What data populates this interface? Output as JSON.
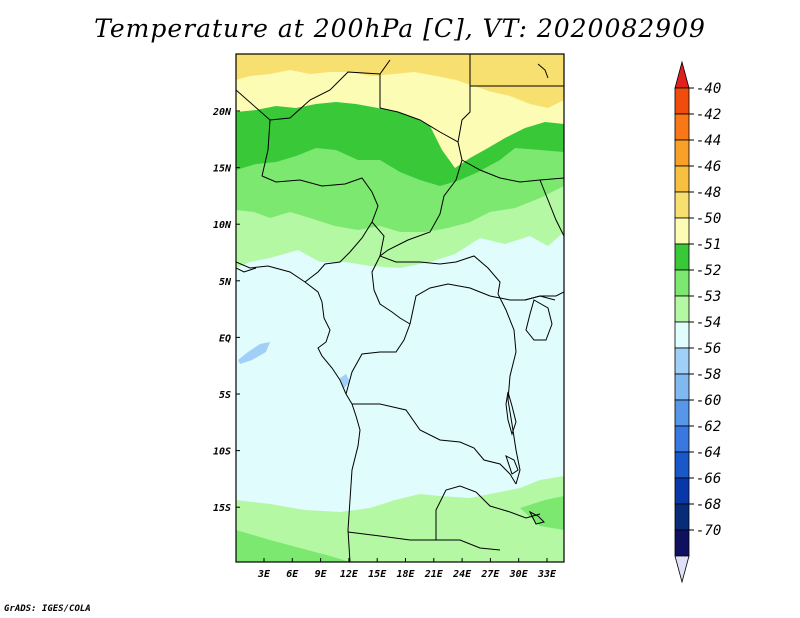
{
  "title": "Temperature at 200hPa [C], VT: 2020082909",
  "credit": "GrADS: IGES/COLA",
  "map": {
    "lat_labels": [
      "20N",
      "15N",
      "10N",
      "5N",
      "EQ",
      "5S",
      "10S",
      "15S"
    ],
    "lon_labels": [
      "3E",
      "6E",
      "9E",
      "12E",
      "15E",
      "18E",
      "21E",
      "24E",
      "27E",
      "30E",
      "33E"
    ]
  },
  "colorbar": {
    "labels": [
      "-40",
      "-42",
      "-44",
      "-46",
      "-48",
      "-50",
      "-51",
      "-52",
      "-53",
      "-54",
      "-56",
      "-58",
      "-60",
      "-62",
      "-64",
      "-66",
      "-68",
      "-70"
    ],
    "colors": [
      "#e0201c",
      "#f04c0c",
      "#f87818",
      "#f8a028",
      "#f8c040",
      "#f8e070",
      "#fcfcb4",
      "#38c838",
      "#7ce870",
      "#b4f8a4",
      "#e0fcfc",
      "#a0d0f8",
      "#80b8f0",
      "#5896e8",
      "#3878e0",
      "#1858c8",
      "#0838a8",
      "#082c78",
      "#101060",
      "#e0e0f8"
    ]
  }
}
